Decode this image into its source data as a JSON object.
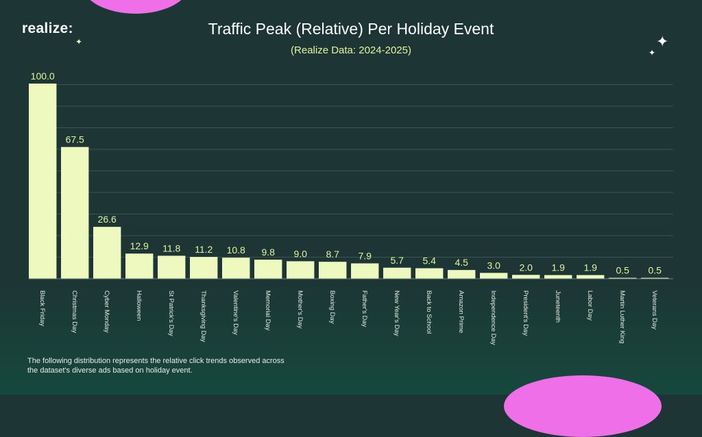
{
  "brand": {
    "name": "realize:"
  },
  "colors": {
    "background": "#1e3536",
    "bar": "#eef9c0",
    "value_label": "#e4f59b",
    "accent_blob": "#ee6fe8",
    "grid": "#3c5253"
  },
  "icons": [
    "sparkle-icon",
    "sparkle-icon",
    "sparkle-icon"
  ],
  "chart_data": {
    "type": "bar",
    "title": "Traffic Peak (Relative) Per Holiday Event",
    "subtitle": "(Realize Data: 2024-2025)",
    "xlabel": "",
    "ylabel": "",
    "ylim": [
      0,
      100
    ],
    "grid": true,
    "categories": [
      "Black Friday",
      "Christmas Day",
      "Cyber Monday",
      "Halloween",
      "St Patrick's Day",
      "Thanksgiving Day",
      "Valentine's Day",
      "Memorial Day",
      "Mother's Day",
      "Boxing Day",
      "Father's Day",
      "New Year's Day",
      "Back to School",
      "Amazon Prime",
      "Independence Day",
      "President's Day",
      "Juneteenth",
      "Labor Day",
      "Martin Luther King",
      "Veterans Day"
    ],
    "values": [
      100.0,
      67.5,
      26.6,
      12.9,
      11.8,
      11.2,
      10.8,
      9.8,
      9.0,
      8.7,
      7.9,
      5.7,
      5.4,
      4.5,
      3.0,
      2.0,
      1.9,
      1.9,
      0.5,
      0.5
    ],
    "value_labels": [
      "100.0",
      "67.5",
      "26.6",
      "12.9",
      "11.8",
      "11.2",
      "10.8",
      "9.8",
      "9.0",
      "8.7",
      "7.9",
      "5.7",
      "5.4",
      "4.5",
      "3.0",
      "2.0",
      "1.9",
      "1.9",
      "0.5",
      "0.5"
    ]
  },
  "footnote": "The following distribution represents the relative click trends observed across the dataset's diverse ads based on holiday event."
}
